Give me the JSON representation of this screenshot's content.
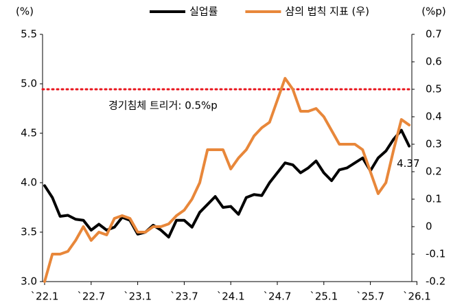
{
  "chart_data": {
    "type": "line",
    "categories": [
      "`22.1",
      null,
      null,
      null,
      null,
      null,
      "`22.7",
      null,
      null,
      null,
      null,
      null,
      "`23.1",
      null,
      null,
      null,
      null,
      null,
      "`23.7",
      null,
      null,
      null,
      null,
      null,
      "`24.1",
      null,
      null,
      null,
      null,
      null,
      "`24.7",
      null,
      null,
      null,
      null,
      null,
      "`25.1",
      null,
      null,
      null,
      null,
      null,
      "`25.7",
      null,
      null,
      null,
      null,
      null,
      "`26.1"
    ],
    "series": [
      {
        "name": "실업률",
        "color": "#000000",
        "axis": "y",
        "values": [
          3.97,
          3.85,
          3.66,
          3.67,
          3.63,
          3.62,
          3.52,
          3.58,
          3.52,
          3.55,
          3.65,
          3.62,
          3.48,
          3.5,
          3.57,
          3.52,
          3.45,
          3.62,
          3.62,
          3.55,
          3.7,
          3.78,
          3.86,
          3.75,
          3.76,
          3.68,
          3.85,
          3.88,
          3.87,
          4.0,
          4.1,
          4.2,
          4.18,
          4.1,
          4.15,
          4.22,
          4.1,
          4.02,
          4.13,
          4.15,
          4.2,
          4.25,
          4.12,
          4.25,
          4.32,
          4.44,
          4.53,
          4.37,
          null
        ]
      },
      {
        "name": "샴의 법칙 지표 (우)",
        "color": "#e8873a",
        "axis": "y2",
        "values": [
          -0.2,
          -0.1,
          -0.1,
          -0.09,
          -0.05,
          0.0,
          -0.05,
          -0.02,
          -0.03,
          0.03,
          0.04,
          0.03,
          -0.02,
          -0.02,
          0.0,
          0.0,
          0.01,
          0.04,
          0.06,
          0.1,
          0.16,
          0.28,
          0.28,
          0.28,
          0.21,
          0.25,
          0.28,
          0.33,
          0.36,
          0.38,
          0.46,
          0.54,
          0.5,
          0.42,
          0.42,
          0.43,
          0.4,
          0.35,
          0.3,
          0.3,
          0.3,
          0.28,
          0.2,
          0.12,
          0.16,
          0.28,
          0.39,
          0.37,
          null
        ]
      }
    ],
    "y_label": "(%)",
    "y2_label": "(%p)",
    "ylim": [
      3.0,
      5.5
    ],
    "yticks": [
      {
        "value": 3.0,
        "label": "3.0"
      },
      3.5,
      {
        "value": 4.0,
        "label": "4.0"
      },
      4.5,
      {
        "value": 5.0,
        "label": "5.0"
      },
      5.5
    ],
    "y2lim": [
      -0.2,
      0.7
    ],
    "y2ticks": [
      -0.2,
      -0.1,
      0,
      0.1,
      0.2,
      0.3,
      0.4,
      0.5,
      0.6,
      0.7
    ],
    "reference_line": {
      "value": 0.5,
      "axis": "y2",
      "color": "#e8141c",
      "label": "경기침체 트리거: 0.5%p"
    },
    "legend": "top"
  }
}
